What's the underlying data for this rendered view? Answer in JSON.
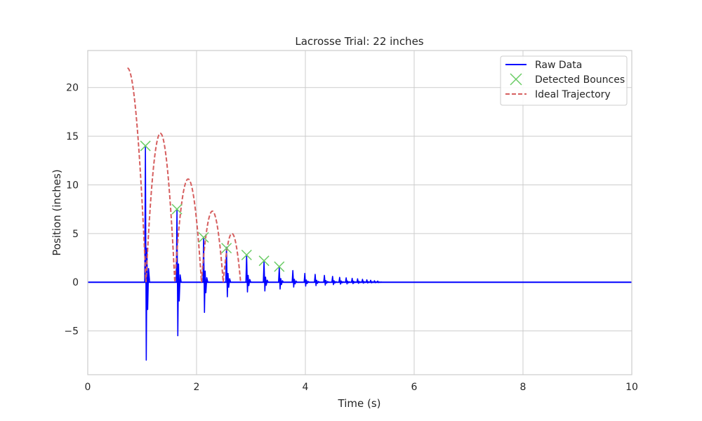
{
  "chart_data": {
    "type": "line",
    "title": "Lacrosse Trial: 22 inches",
    "xlabel": "Time (s)",
    "ylabel": "Position (inches)",
    "xlim": [
      0,
      10
    ],
    "ylim": [
      -9.5,
      23.8
    ],
    "xticks": [
      0,
      2,
      4,
      6,
      8,
      10
    ],
    "xtick_labels": [
      "0",
      "2",
      "4",
      "6",
      "8",
      "10"
    ],
    "yticks": [
      -5,
      0,
      5,
      10,
      15,
      20
    ],
    "ytick_labels": [
      "−5",
      "0",
      "5",
      "10",
      "15",
      "20"
    ],
    "grid": true,
    "legend_position": "top-right",
    "colors": {
      "raw": "#0000ff",
      "bounces": "#6acc65",
      "ideal": "#d65f5f",
      "grid": "#cccccc",
      "axes": "#cccccc"
    },
    "series": [
      {
        "name": "Raw Data",
        "kind": "spikes",
        "baseline": 0,
        "spikes": [
          {
            "t": 1.06,
            "peak": 14.0,
            "trough": -8.0
          },
          {
            "t": 1.64,
            "peak": 7.5,
            "trough": -5.5
          },
          {
            "t": 2.13,
            "peak": 4.6,
            "trough": -3.1
          },
          {
            "t": 2.55,
            "peak": 3.6,
            "trough": -1.5
          },
          {
            "t": 2.92,
            "peak": 2.8,
            "trough": -1.0
          },
          {
            "t": 3.24,
            "peak": 2.1,
            "trough": -0.9
          },
          {
            "t": 3.52,
            "peak": 1.5,
            "trough": -0.7
          },
          {
            "t": 3.77,
            "peak": 1.2,
            "trough": -0.5
          },
          {
            "t": 3.99,
            "peak": 0.9,
            "trough": -0.4
          },
          {
            "t": 4.18,
            "peak": 0.8,
            "trough": -0.35
          },
          {
            "t": 4.35,
            "peak": 0.7,
            "trough": -0.3
          },
          {
            "t": 4.5,
            "peak": 0.6,
            "trough": -0.25
          },
          {
            "t": 4.63,
            "peak": 0.5,
            "trough": -0.2
          },
          {
            "t": 4.75,
            "peak": 0.45,
            "trough": -0.18
          },
          {
            "t": 4.86,
            "peak": 0.4,
            "trough": -0.15
          },
          {
            "t": 4.96,
            "peak": 0.35,
            "trough": -0.12
          },
          {
            "t": 5.05,
            "peak": 0.3,
            "trough": -0.1
          },
          {
            "t": 5.13,
            "peak": 0.25,
            "trough": -0.08
          },
          {
            "t": 5.2,
            "peak": 0.2,
            "trough": -0.07
          },
          {
            "t": 5.27,
            "peak": 0.15,
            "trough": -0.05
          },
          {
            "t": 5.33,
            "peak": 0.12,
            "trough": -0.04
          }
        ]
      },
      {
        "name": "Detected Bounces",
        "kind": "markers",
        "points": [
          {
            "x": 1.06,
            "y": 14.0
          },
          {
            "x": 1.64,
            "y": 7.5
          },
          {
            "x": 2.13,
            "y": 4.6
          },
          {
            "x": 2.55,
            "y": 3.5
          },
          {
            "x": 2.92,
            "y": 2.8
          },
          {
            "x": 3.24,
            "y": 2.2
          },
          {
            "x": 3.52,
            "y": 1.6
          }
        ]
      },
      {
        "name": "Ideal Trajectory",
        "kind": "dashed",
        "start": {
          "t": 0.73,
          "y": 22
        },
        "first_impact": 1.07,
        "arcs": [
          {
            "t0": 1.07,
            "t1": 1.6,
            "peak": 15.3
          },
          {
            "t0": 1.6,
            "t1": 2.09,
            "peak": 10.6
          },
          {
            "t0": 2.09,
            "t1": 2.49,
            "peak": 7.3
          },
          {
            "t0": 2.49,
            "t1": 2.81,
            "peak": 5.0
          }
        ]
      }
    ]
  }
}
